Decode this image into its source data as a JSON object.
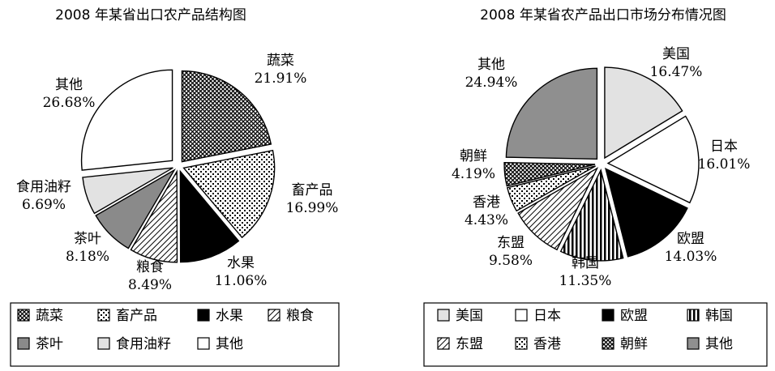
{
  "chart_data": [
    {
      "type": "pie",
      "title": "2008 年某省出口农产品结构图",
      "categories": [
        "蔬菜",
        "畜产品",
        "水果",
        "粮食",
        "茶叶",
        "食用油籽",
        "其他"
      ],
      "values": [
        21.91,
        16.99,
        11.06,
        8.49,
        8.18,
        6.69,
        26.68
      ],
      "value_labels": [
        "21.91%",
        "16.99%",
        "11.06%",
        "8.49%",
        "8.18%",
        "6.69%",
        "26.68%"
      ],
      "fills": [
        "crosshatch",
        "dots",
        "solid-black",
        "diagonal",
        "solid-gray",
        "light-gray",
        "white"
      ],
      "legend": [
        "蔬菜",
        "畜产品",
        "水果",
        "粮食",
        "茶叶",
        "食用油籽",
        "其他"
      ],
      "legend_position": "bottom",
      "exploded": true
    },
    {
      "type": "pie",
      "title": "2008 年某省农产品出口市场分布情况图",
      "categories": [
        "美国",
        "日本",
        "欧盟",
        "韩国",
        "东盟",
        "香港",
        "朝鲜",
        "其他"
      ],
      "values": [
        16.47,
        16.01,
        14.03,
        11.35,
        9.58,
        4.43,
        4.19,
        24.94
      ],
      "value_labels": [
        "16.47%",
        "16.01%",
        "14.03%",
        "11.35%",
        "9.58%",
        "4.43%",
        "4.19%",
        "24.94%"
      ],
      "fills": [
        "light-gray",
        "white",
        "solid-black",
        "vertical-stripes",
        "diagonal",
        "dots",
        "crosshatch",
        "medium-gray"
      ],
      "legend": [
        "美国",
        "日本",
        "欧盟",
        "韩国",
        "东盟",
        "香港",
        "朝鲜",
        "其他"
      ],
      "legend_position": "bottom",
      "exploded": true
    }
  ]
}
